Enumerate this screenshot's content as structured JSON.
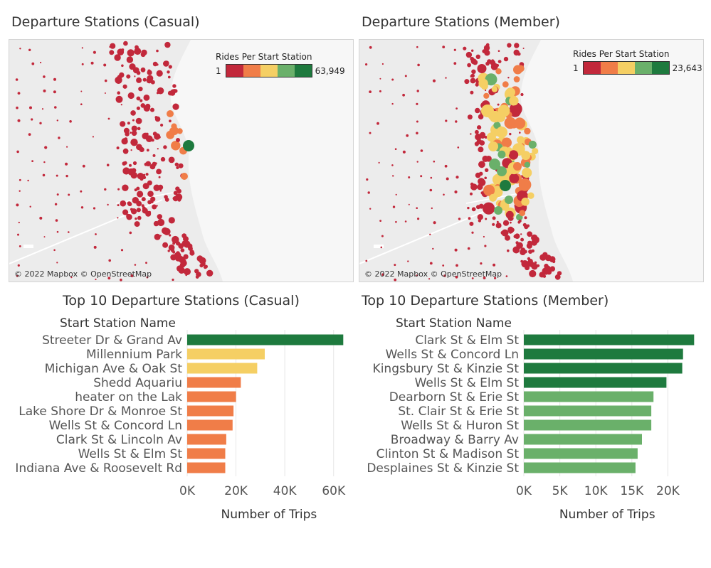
{
  "legend_colors": [
    "#c2283b",
    "#f07d48",
    "#f5cf64",
    "#6ab06a",
    "#1e7a3e"
  ],
  "maps": [
    {
      "title": "Departure Stations (Casual)",
      "credit": "© 2022 Mapbox © OpenStreetMap",
      "legend_title": "Rides Per Start Station",
      "legend_min": "1",
      "legend_max": "63,949"
    },
    {
      "title": "Departure Stations (Member)",
      "credit": "© 2022 Mapbox © OpenStreetMap",
      "legend_title": "Rides Per Start Station",
      "legend_min": "1",
      "legend_max": "23,643"
    }
  ],
  "chart_data": [
    {
      "type": "bar",
      "orientation": "horizontal",
      "title": "Top 10 Departure Stations (Casual)",
      "category_header": "Start Station Name",
      "xlabel": "Number of Trips",
      "xlim": [
        0,
        70000
      ],
      "ticks": [
        0,
        20000,
        40000,
        60000
      ],
      "tick_labels": [
        "0K",
        "20K",
        "40K",
        "60K"
      ],
      "grid": true,
      "categories": [
        "Streeter Dr & Grand Av",
        "Millennium Park",
        "Michigan Ave & Oak St",
        "Shedd Aquariu",
        "heater on the Lak",
        "Lake Shore Dr & Monroe St",
        "Wells St & Concord Ln",
        "Clark St & Lincoln Av",
        "Wells St & Elm St",
        "Indiana Ave & Roosevelt Rd"
      ],
      "values": [
        63949,
        31800,
        28700,
        22000,
        20000,
        19000,
        18600,
        16000,
        15600,
        15600
      ],
      "colors": [
        "#1e7a3e",
        "#f5cf64",
        "#f5cf64",
        "#f07d48",
        "#f07d48",
        "#f07d48",
        "#f07d48",
        "#f07d48",
        "#f07d48",
        "#f07d48"
      ]
    },
    {
      "type": "bar",
      "orientation": "horizontal",
      "title": "Top 10 Departure Stations (Member)",
      "category_header": "Start Station Name",
      "xlabel": "Number of Trips",
      "xlim": [
        0,
        25000
      ],
      "ticks": [
        0,
        5000,
        10000,
        15000,
        20000
      ],
      "tick_labels": [
        "0K",
        "5K",
        "10K",
        "15K",
        "20K"
      ],
      "grid": true,
      "categories": [
        "Clark St & Elm St",
        "Wells St & Concord Ln",
        "Kingsbury St & Kinzie St",
        "Wells St & Elm St",
        "Dearborn St & Erie St",
        "St. Clair St & Erie St",
        "Wells St & Huron St",
        "Broadway & Barry Av",
        "Clinton St & Madison St",
        "Desplaines St & Kinzie St"
      ],
      "values": [
        23643,
        22100,
        22000,
        19800,
        18000,
        17700,
        17700,
        16400,
        15800,
        15500
      ],
      "colors": [
        "#1e7a3e",
        "#1e7a3e",
        "#1e7a3e",
        "#1e7a3e",
        "#6ab06a",
        "#6ab06a",
        "#6ab06a",
        "#6ab06a",
        "#6ab06a",
        "#6ab06a"
      ]
    }
  ]
}
